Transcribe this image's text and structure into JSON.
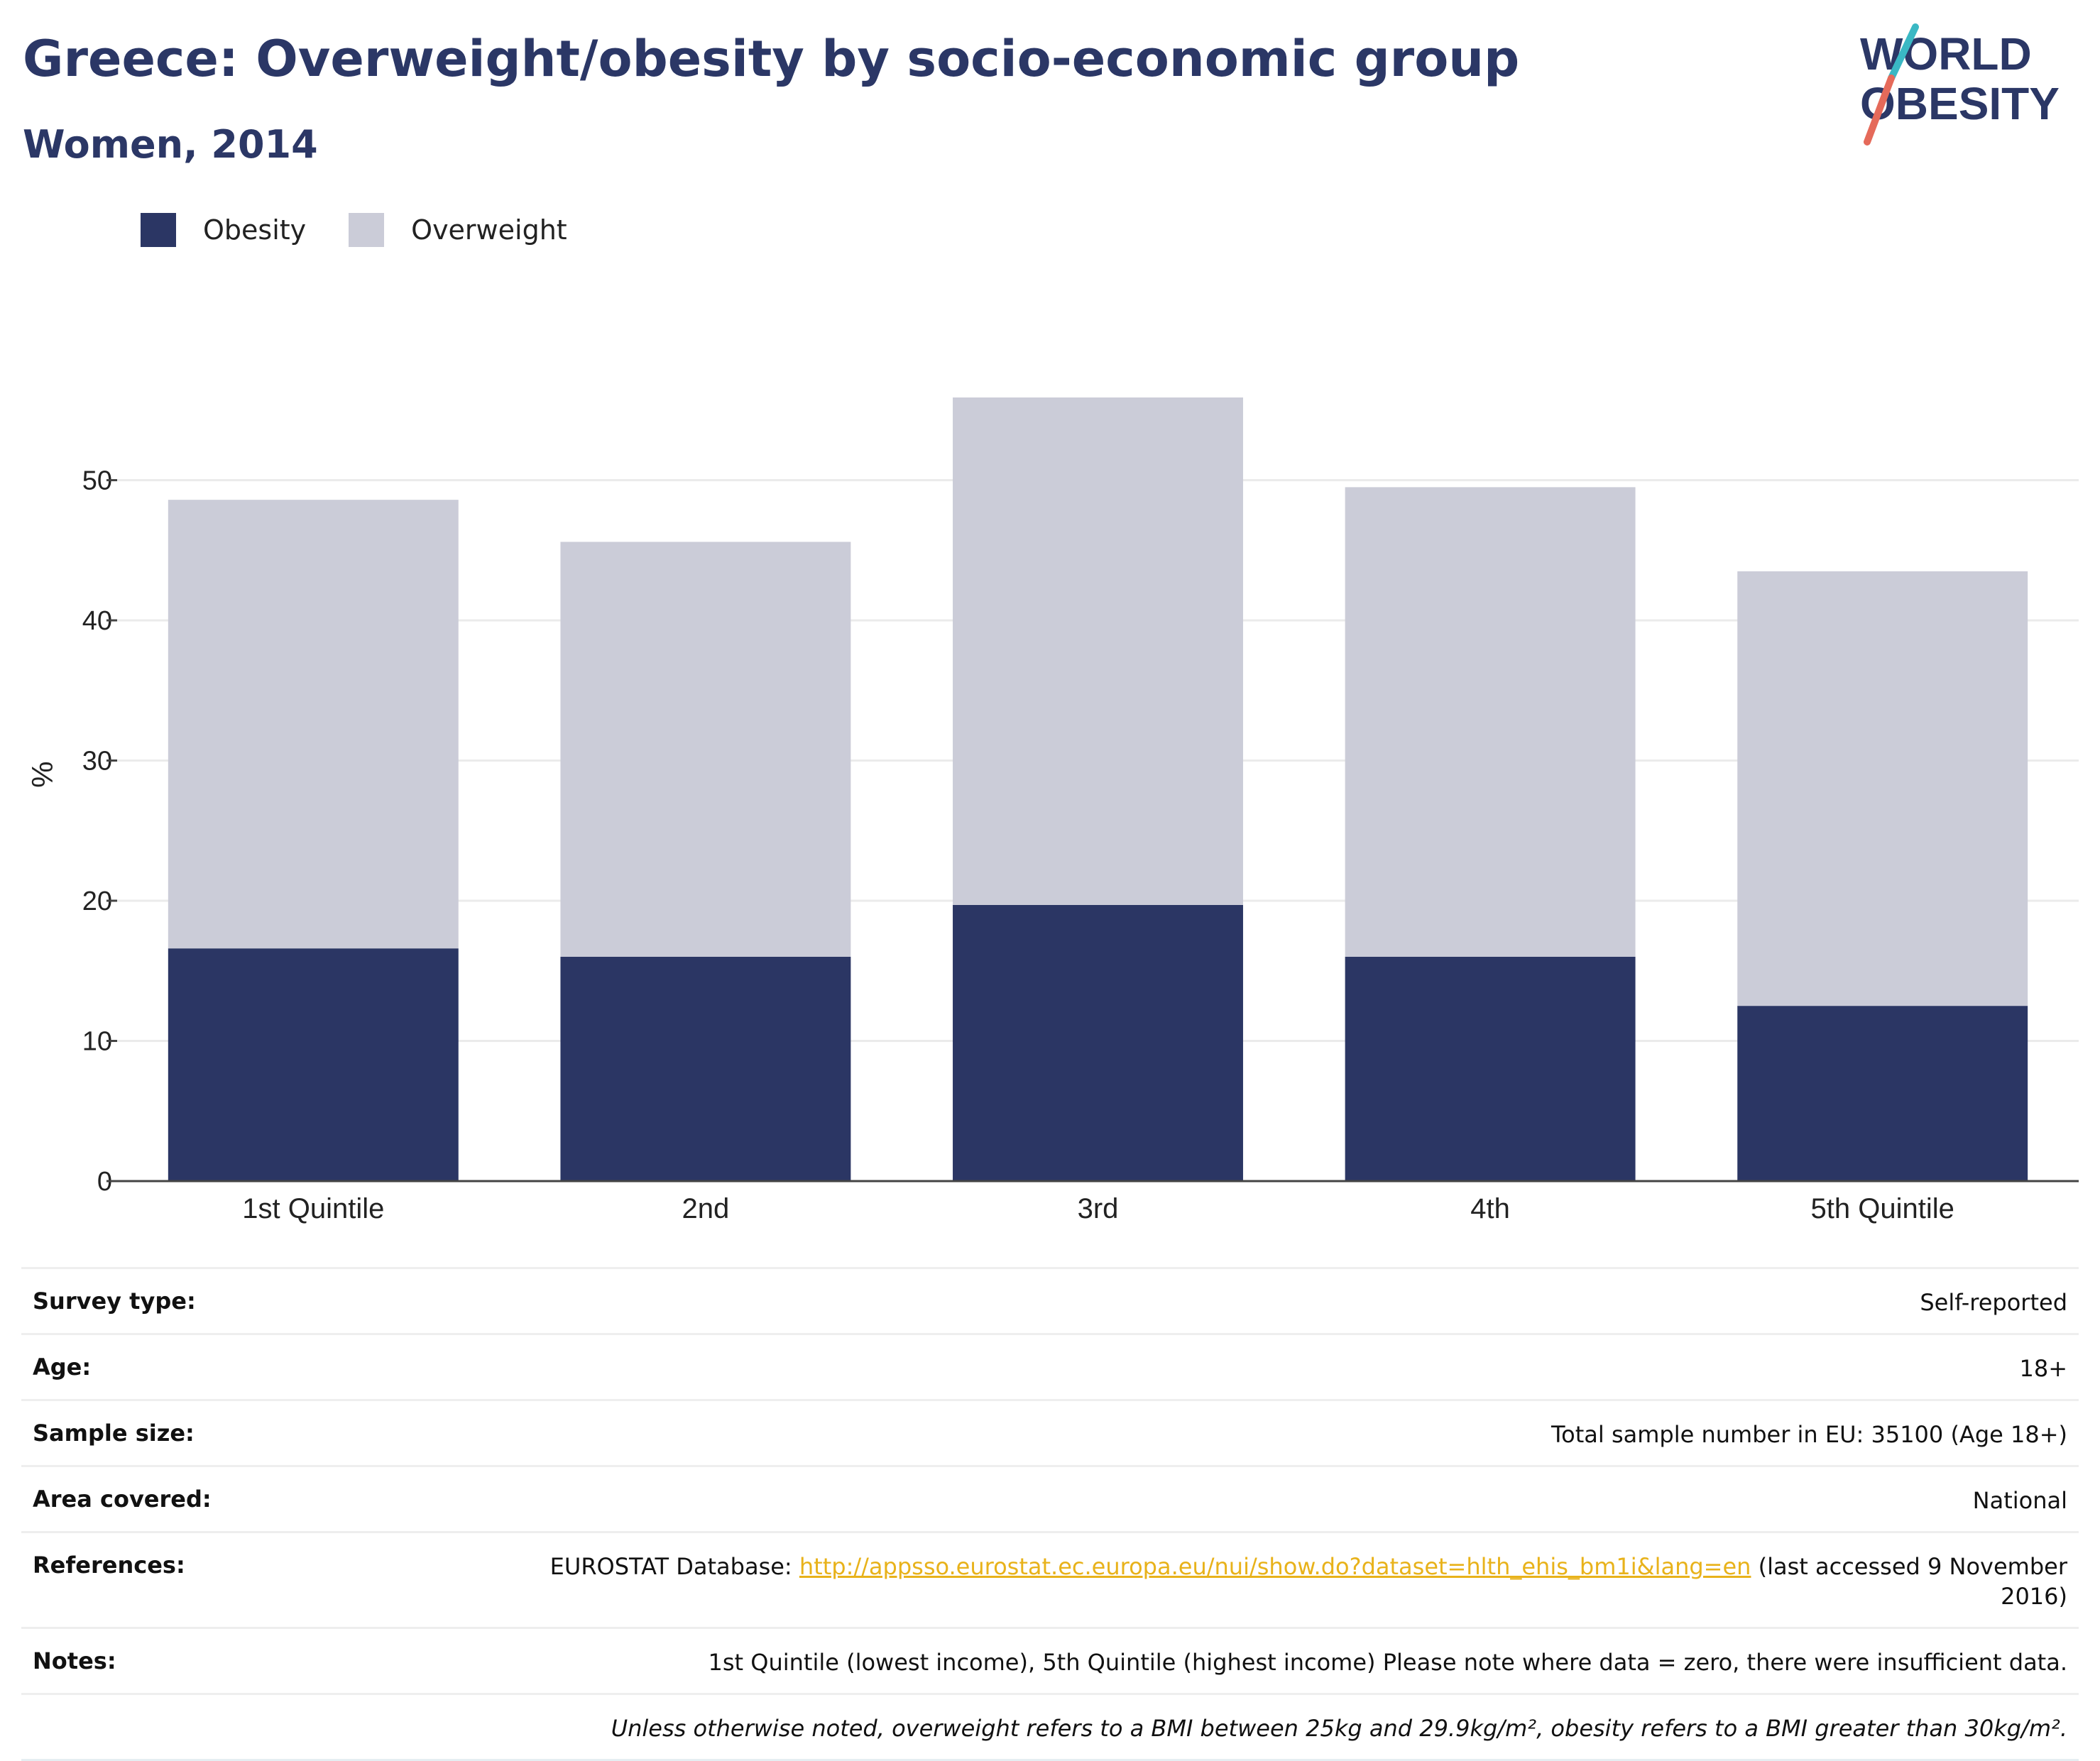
{
  "header": {
    "title": "Greece: Overweight/obesity by socio-economic group",
    "subtitle": "Women, 2014"
  },
  "logo": {
    "line1": "WORLD",
    "line2": "OBESITY",
    "colors": {
      "text": "#2b3766",
      "slash_top": "#3ab8c4",
      "slash_bottom": "#e56a5a"
    }
  },
  "legend": {
    "items": [
      {
        "label": "Obesity",
        "color": "#2b3664"
      },
      {
        "label": "Overweight",
        "color": "#cbccd8"
      }
    ]
  },
  "chart_data": {
    "type": "bar",
    "stacked": true,
    "categories": [
      "1st Quintile",
      "2nd",
      "3rd",
      "4th",
      "5th Quintile"
    ],
    "series": [
      {
        "name": "Obesity",
        "color": "#2b3664",
        "values": [
          16.6,
          16.0,
          19.7,
          16.0,
          12.5
        ]
      },
      {
        "name": "Overweight",
        "color": "#cbccd8",
        "values": [
          32.0,
          29.6,
          36.2,
          33.5,
          31.0
        ]
      }
    ],
    "ylabel": "%",
    "ylim": [
      0,
      60
    ],
    "yticks": [
      0,
      10,
      20,
      30,
      40,
      50
    ],
    "grid": true,
    "legend_position": "top-left"
  },
  "info": {
    "survey_type": {
      "label": "Survey type:",
      "value": "Self-reported"
    },
    "age": {
      "label": "Age:",
      "value": "18+"
    },
    "sample_size": {
      "label": "Sample size:",
      "value": "Total sample number in EU: 35100 (Age 18+)"
    },
    "area_covered": {
      "label": "Area covered:",
      "value": "National"
    },
    "references": {
      "label": "References:",
      "prefix": "EUROSTAT Database: ",
      "link": "http://appsso.eurostat.ec.europa.eu/nui/show.do?dataset=hlth_ehis_bm1i&lang=en",
      "suffix": " (last accessed 9 November 2016)"
    },
    "notes": {
      "label": "Notes:",
      "value": "1st Quintile (lowest income), 5th Quintile (highest income) Please note where data = zero, there were insufficient data."
    },
    "definition": "Unless otherwise noted, overweight refers to a BMI between 25kg and 29.9kg/m², obesity refers to a BMI greater than 30kg/m²."
  }
}
